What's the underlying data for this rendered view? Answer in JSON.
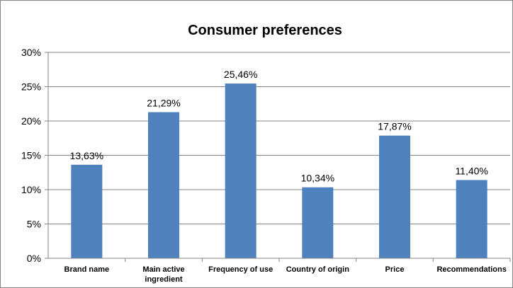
{
  "chart_data": {
    "type": "bar",
    "title": "Consumer preferences",
    "xlabel": "",
    "ylabel": "",
    "categories": [
      [
        "Brand name"
      ],
      [
        "Main active",
        "ingredient"
      ],
      [
        "Frequency of use"
      ],
      [
        "Country of origin"
      ],
      [
        "Price"
      ],
      [
        "Recommendations"
      ]
    ],
    "values": [
      13.63,
      21.29,
      25.46,
      10.34,
      17.87,
      11.4
    ],
    "value_labels": [
      "13,63%",
      "21,29%",
      "25,46%",
      "10,34%",
      "17,87%",
      "11,40%"
    ],
    "yticks": [
      {
        "value": 0,
        "label": "0%"
      },
      {
        "value": 5,
        "label": "5%"
      },
      {
        "value": 10,
        "label": "10%"
      },
      {
        "value": 15,
        "label": "15%"
      },
      {
        "value": 20,
        "label": "20%"
      },
      {
        "value": 25,
        "label": "25%"
      },
      {
        "value": 30,
        "label": "30%"
      }
    ],
    "ylim": [
      0,
      30
    ],
    "grid": true,
    "legend": "none",
    "bar_color": "#4f81bd",
    "grid_color": "#868686",
    "border_color": "#868686"
  }
}
